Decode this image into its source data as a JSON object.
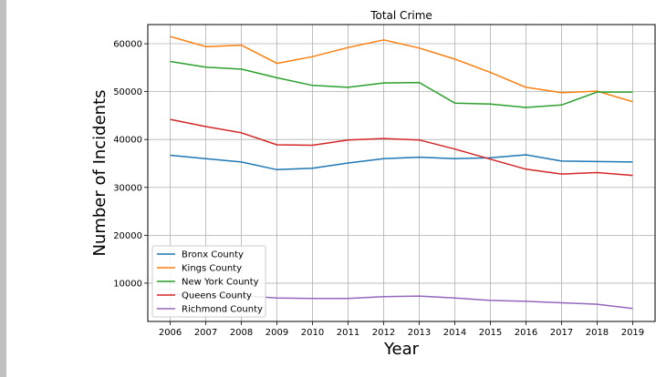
{
  "chart_data": {
    "type": "line",
    "title": "Total Crime",
    "xlabel": "Year",
    "ylabel": "Number of Incidents",
    "x": [
      2006,
      2007,
      2008,
      2009,
      2010,
      2011,
      2012,
      2013,
      2014,
      2015,
      2016,
      2017,
      2018,
      2019
    ],
    "yticks": [
      10000,
      20000,
      30000,
      40000,
      50000,
      60000
    ],
    "ylim": [
      2000,
      64000
    ],
    "grid": true,
    "legend_position": "bottom-left",
    "series": [
      {
        "name": "Bronx County",
        "color": "#1f77b4",
        "values": [
          36700,
          36000,
          35300,
          33700,
          34000,
          35100,
          36000,
          36300,
          36000,
          36200,
          36800,
          35500,
          35400,
          35300
        ]
      },
      {
        "name": "Kings County",
        "color": "#ff7f0e",
        "values": [
          61500,
          59400,
          59700,
          55900,
          57300,
          59200,
          60800,
          59100,
          56800,
          54000,
          50900,
          49800,
          50100,
          47900
        ]
      },
      {
        "name": "New York County",
        "color": "#2ca02c",
        "values": [
          56300,
          55100,
          54700,
          52900,
          51300,
          50900,
          51800,
          51900,
          47600,
          47400,
          46700,
          47200,
          49900,
          49900
        ]
      },
      {
        "name": "Queens County",
        "color": "#d62728",
        "values": [
          44200,
          42700,
          41400,
          38900,
          38800,
          39900,
          40200,
          39900,
          38000,
          35900,
          33800,
          32800,
          33100,
          32500
        ]
      },
      {
        "name": "Richmond County",
        "color": "#9467bd",
        "values": [
          7700,
          7400,
          7400,
          6900,
          6800,
          6800,
          7200,
          7300,
          6900,
          6400,
          6200,
          5900,
          5600,
          4700
        ]
      }
    ]
  }
}
